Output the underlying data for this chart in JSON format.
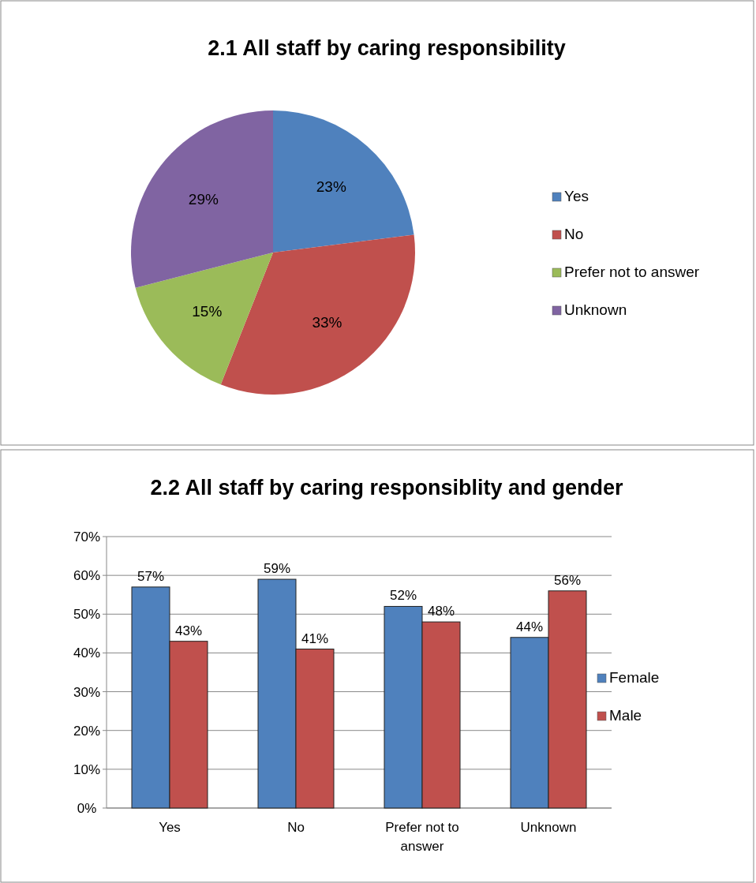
{
  "chart_data": [
    {
      "type": "pie",
      "title": "2.1 All staff by caring responsibility",
      "categories": [
        "Yes",
        "No",
        "Prefer not to answer",
        "Unknown"
      ],
      "values": [
        23,
        33,
        15,
        29
      ],
      "colors": [
        "#4f81bd",
        "#c0504d",
        "#9bbb59",
        "#8064a2"
      ],
      "value_labels": [
        "23%",
        "33%",
        "15%",
        "29%"
      ],
      "legend": "right"
    },
    {
      "type": "bar",
      "title": "2.2 All staff by caring responsiblity and gender",
      "categories": [
        "Yes",
        "No",
        "Prefer not to answer",
        "Unknown"
      ],
      "series": [
        {
          "name": "Female",
          "color": "#4f81bd",
          "values": [
            57,
            59,
            52,
            44
          ],
          "value_labels": [
            "57%",
            "59%",
            "52%",
            "44%"
          ]
        },
        {
          "name": "Male",
          "color": "#c0504d",
          "values": [
            43,
            41,
            48,
            56
          ],
          "value_labels": [
            "43%",
            "41%",
            "48%",
            "56%"
          ]
        }
      ],
      "ylim": [
        0,
        70
      ],
      "yticks": [
        {
          "value": 0,
          "label": "0%"
        },
        {
          "value": 10,
          "label": "10%"
        },
        {
          "value": 20,
          "label": "20%"
        },
        {
          "value": 30,
          "label": "30%"
        },
        {
          "value": 40,
          "label": "40%"
        },
        {
          "value": 50,
          "label": "50%"
        },
        {
          "value": 60,
          "label": "60%"
        },
        {
          "value": 70,
          "label": "70%"
        }
      ],
      "grid": "y",
      "legend": "right"
    }
  ]
}
